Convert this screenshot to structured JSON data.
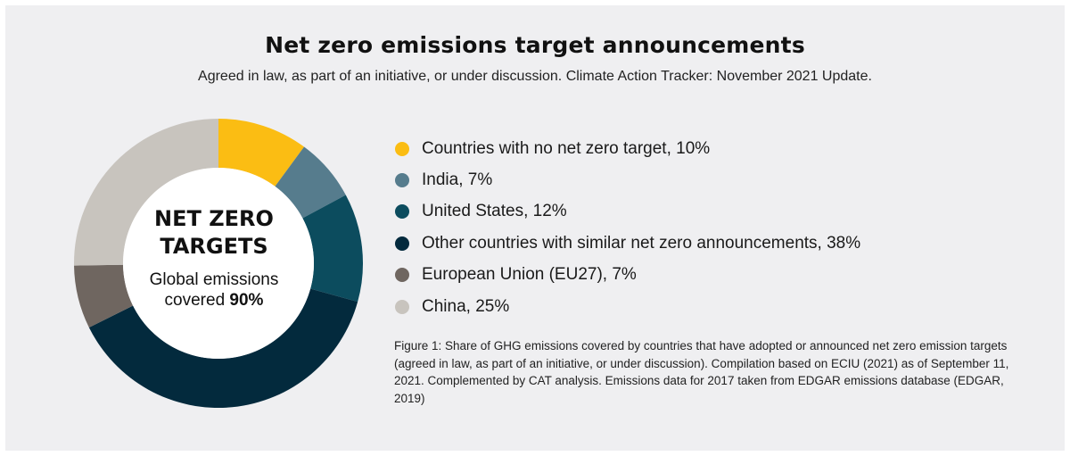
{
  "title": "Net zero emissions target announcements",
  "subtitle": "Agreed in law, as part of an initiative, or under discussion. Climate Action Tracker: November 2021 Update.",
  "center": {
    "title_line1": "NET ZERO",
    "title_line2": "TARGETS",
    "line1": "Global emissions",
    "line2_prefix": "covered ",
    "line2_value": "90%"
  },
  "legend": [
    {
      "label": "Countries with no net zero target, 10%",
      "color": "#fbbd13"
    },
    {
      "label": "India, 7%",
      "color": "#567c8d"
    },
    {
      "label": "United States, 12%",
      "color": "#0c4c5e"
    },
    {
      "label": "Other countries with similar net zero announcements, 38%",
      "color": "#032a3d"
    },
    {
      "label": "European Union (EU27), 7%",
      "color": "#6f6660"
    },
    {
      "label": "China, 25%",
      "color": "#c8c4be"
    }
  ],
  "caption": "Figure 1:  Share of GHG emissions covered by countries that have adopted or announced net zero emission targets (agreed in law, as part of an initiative, or under discussion). Compilation based on ECIU (2021) as of September 11, 2021. Complemented by CAT analysis. Emissions data for 2017 taken from EDGAR emissions database (EDGAR, 2019)",
  "chart_data": {
    "type": "pie",
    "categories": [
      "Countries with no net zero target",
      "India",
      "United States",
      "Other countries with similar net zero announcements",
      "European Union (EU27)",
      "China"
    ],
    "values": [
      10,
      7,
      12,
      38,
      7,
      25
    ],
    "units": "%",
    "colors": [
      "#fbbd13",
      "#567c8d",
      "#0c4c5e",
      "#032a3d",
      "#6f6660",
      "#c8c4be"
    ],
    "donut": true,
    "start": "12 o'clock",
    "direction": "clockwise",
    "legend": "right"
  }
}
